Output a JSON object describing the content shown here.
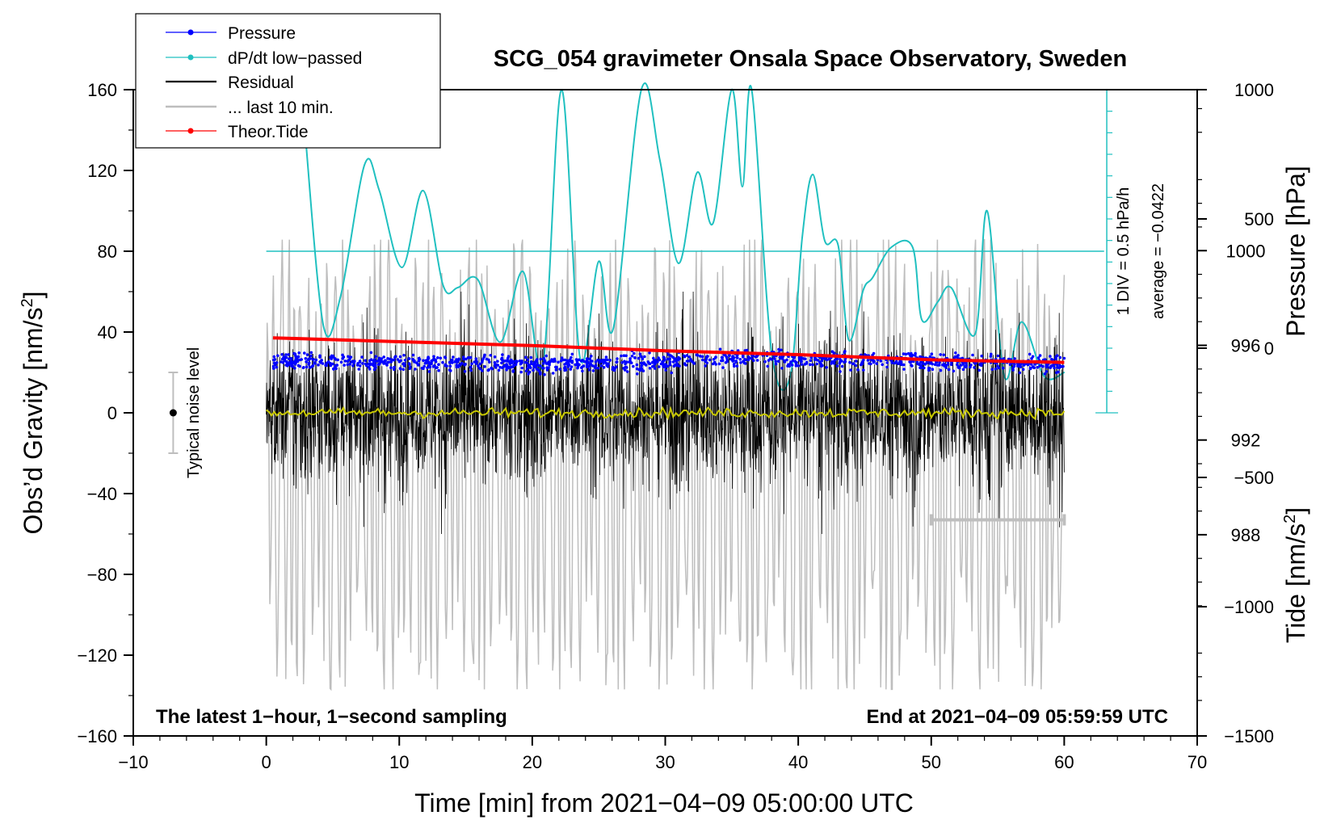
{
  "chart_data": {
    "type": "line",
    "title": "SCG_054 gravimeter Onsala Space Observatory, Sweden",
    "xlabel": "Time [min] from 2021−04−09 05:00:00 UTC",
    "ylabel_left_main": "Obs’d Gravity [nm/s",
    "ylabel_left_sup": "2",
    "ylabel_left_end": "]",
    "ylabel_right_pressure": "Pressure [hPa]",
    "ylabel_right_tide_main": "Tide [nm/s",
    "ylabel_right_tide_sup": "2",
    "ylabel_right_tide_end": "]",
    "xlim": [
      -10,
      70
    ],
    "ylim": [
      -160,
      160
    ],
    "x_ticks": [
      "−10",
      "0",
      "10",
      "20",
      "30",
      "40",
      "50",
      "60",
      "70"
    ],
    "x_tick_values": [
      -10,
      0,
      10,
      20,
      30,
      40,
      50,
      60,
      70
    ],
    "y_ticks": [
      "−160",
      "−120",
      "−80",
      "−40",
      "0",
      "40",
      "80",
      "120",
      "160"
    ],
    "y_tick_values": [
      -160,
      -120,
      -80,
      -40,
      0,
      40,
      80,
      120,
      160
    ],
    "pressure_ticks": [
      "988",
      "992",
      "996",
      "1000"
    ],
    "pressure_tick_values": [
      988,
      992,
      996,
      1000
    ],
    "pressure_range": [
      979.5,
      1006.8
    ],
    "tide_ticks": [
      "−1500",
      "−1000",
      "−500",
      "0",
      "500",
      "1000"
    ],
    "tide_tick_values": [
      -1500,
      -1000,
      -500,
      0,
      500,
      1000
    ],
    "tide_range": [
      -1500,
      1000
    ],
    "legend": [
      {
        "label": "Pressure",
        "color": "#0000ff",
        "marker": true
      },
      {
        "label": "dP/dt low−passed",
        "color": "#20c0c0",
        "marker": true
      },
      {
        "label": "Residual",
        "color": "#000000",
        "marker": false
      },
      {
        "label": "... last 10 min.",
        "color": "#bebebe",
        "marker": false
      },
      {
        "label": "Theor.Tide",
        "color": "#ff0000",
        "marker": true
      }
    ],
    "annotations": {
      "bottom_left": "The latest 1−hour, 1−second sampling",
      "bottom_right": "End at 2021−04−09 05:59:59 UTC",
      "noise_label": "Typical noise level",
      "dpdt_scale": "1 DIV = 0.5 hPa/h",
      "dpdt_average": "average = −0.0422"
    },
    "noise_bar": {
      "x": -7,
      "y": 0,
      "low": -20,
      "high": 20
    },
    "last10_bar": {
      "x_start": 50,
      "x_end": 60,
      "y": -53
    },
    "series": [
      {
        "name": "Pressure",
        "unit": "hPa",
        "color": "#0000ff",
        "x": [
          0.5,
          10,
          20,
          30,
          37,
          40,
          50,
          60
        ],
        "y": [
          995.3,
          995.3,
          995.2,
          995.3,
          995.5,
          995.4,
          995.3,
          995.2
        ]
      },
      {
        "name": "dP/dt low-passed",
        "color": "#20c0c0",
        "baseline": 80,
        "x": [
          2.9,
          4.3,
          5.6,
          7.4,
          8.5,
          10.2,
          11.8,
          13.3,
          14.4,
          15.9,
          17.6,
          19.3,
          20.8,
          22.2,
          23.6,
          25.0,
          26.1,
          28.2,
          29.6,
          31.0,
          32.4,
          33.6,
          35.0,
          35.8,
          36.5,
          38.0,
          39.4,
          40.3,
          41.1,
          42.0,
          43.0,
          43.8,
          44.9,
          45.6,
          47.0,
          48.6,
          49.3,
          50.5,
          51.5,
          53.3,
          54.2,
          55.5,
          56.8,
          58.5,
          60.0
        ],
        "y": [
          140,
          43,
          58,
          123,
          110,
          72,
          110,
          63,
          62,
          66,
          35,
          70,
          24,
          160,
          27,
          75,
          42,
          160,
          125,
          74,
          119,
          94,
          160,
          112,
          162,
          30,
          18,
          87,
          118,
          85,
          83,
          36,
          61,
          67,
          82,
          82,
          46,
          55,
          62,
          39,
          100,
          18,
          45,
          18,
          20
        ]
      },
      {
        "name": "Residual",
        "color": "#000000",
        "x_range": [
          0,
          60
        ],
        "amplitude_typical": 20,
        "amplitude_max": 60
      },
      {
        "name": "Residual low-passed",
        "color": "#c8c800",
        "x_range": [
          0,
          60
        ],
        "y": 0
      },
      {
        "name": "... last 10 min.",
        "color": "#bebebe",
        "x_range": [
          0,
          60
        ],
        "tide_range": [
          -1300,
          400
        ]
      },
      {
        "name": "Theor.Tide",
        "unit": "nm/s2",
        "color": "#ff0000",
        "x": [
          0.5,
          10,
          20,
          30,
          40,
          50,
          60
        ],
        "y": [
          40,
          25,
          10,
          -10,
          -25,
          -45,
          -55
        ]
      }
    ]
  }
}
